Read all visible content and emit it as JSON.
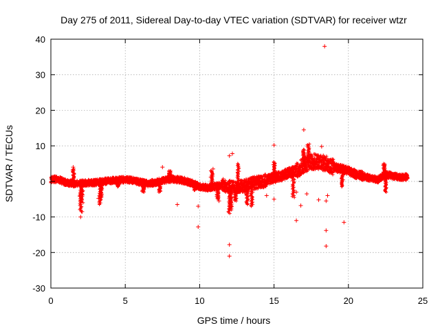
{
  "chart_data": {
    "type": "scatter",
    "title": "Day 275 of 2011, Sidereal Day-to-day VTEC variation (SDTVAR) for receiver wtzr",
    "xlabel": "GPS time / hours",
    "ylabel": "SDTVAR / TECUs",
    "xlim": [
      0,
      25
    ],
    "ylim": [
      -30,
      40
    ],
    "xticks": [
      0,
      5,
      10,
      15,
      20,
      25
    ],
    "yticks": [
      -30,
      -20,
      -10,
      0,
      10,
      20,
      30,
      40
    ],
    "grid": true,
    "marker": "+",
    "color": "#ff0000",
    "baseline_trend": [
      [
        0.0,
        0.5
      ],
      [
        0.3,
        0.6
      ],
      [
        0.6,
        0.4
      ],
      [
        1.0,
        -0.3
      ],
      [
        1.5,
        -0.6
      ],
      [
        2.0,
        -0.5
      ],
      [
        2.5,
        -0.4
      ],
      [
        3.0,
        -0.3
      ],
      [
        3.5,
        -0.1
      ],
      [
        4.0,
        0.2
      ],
      [
        4.5,
        0.4
      ],
      [
        5.0,
        0.5
      ],
      [
        5.5,
        0.3
      ],
      [
        6.0,
        -0.2
      ],
      [
        6.5,
        -0.6
      ],
      [
        7.0,
        -0.3
      ],
      [
        7.5,
        0.2
      ],
      [
        8.0,
        0.6
      ],
      [
        8.5,
        0.5
      ],
      [
        9.0,
        0.2
      ],
      [
        9.5,
        -0.5
      ],
      [
        10.0,
        -1.5
      ],
      [
        10.5,
        -1.8
      ],
      [
        11.0,
        -1.5
      ],
      [
        11.5,
        -1.0
      ],
      [
        12.0,
        -1.5
      ],
      [
        12.5,
        -1.8
      ],
      [
        13.0,
        -1.2
      ],
      [
        13.5,
        -0.5
      ],
      [
        14.0,
        -0.3
      ],
      [
        14.5,
        0.3
      ],
      [
        15.0,
        1.0
      ],
      [
        15.5,
        1.5
      ],
      [
        16.0,
        2.5
      ],
      [
        16.5,
        3.0
      ],
      [
        17.0,
        4.5
      ],
      [
        17.5,
        5.5
      ],
      [
        18.0,
        5.5
      ],
      [
        18.5,
        5.0
      ],
      [
        19.0,
        4.0
      ],
      [
        19.5,
        3.5
      ],
      [
        20.0,
        3.0
      ],
      [
        20.5,
        2.0
      ],
      [
        21.0,
        1.5
      ],
      [
        21.5,
        0.8
      ],
      [
        22.0,
        0.5
      ],
      [
        22.5,
        2.0
      ],
      [
        23.0,
        1.5
      ],
      [
        23.5,
        1.2
      ],
      [
        24.0,
        1.2
      ]
    ],
    "outliers": [
      [
        18.4,
        38.0
      ],
      [
        17.0,
        14.5
      ],
      [
        15.0,
        10.2
      ],
      [
        18.2,
        9.8
      ],
      [
        12.2,
        7.8
      ],
      [
        12.0,
        7.2
      ],
      [
        7.5,
        4.0
      ],
      [
        1.5,
        4.0
      ],
      [
        8.5,
        -6.5
      ],
      [
        9.9,
        -7.0
      ],
      [
        9.9,
        -12.8
      ],
      [
        12.0,
        -17.8
      ],
      [
        12.0,
        -21.0
      ],
      [
        16.5,
        -11.0
      ],
      [
        18.5,
        -13.8
      ],
      [
        18.5,
        -18.2
      ],
      [
        19.7,
        -11.5
      ],
      [
        16.8,
        -6.8
      ],
      [
        17.2,
        -3.5
      ],
      [
        18.0,
        -5.2
      ],
      [
        18.5,
        -5.5
      ],
      [
        18.6,
        -4.0
      ],
      [
        2.0,
        -10.0
      ],
      [
        2.1,
        -8.5
      ],
      [
        3.2,
        -4.8
      ],
      [
        11.3,
        -5.5
      ],
      [
        10.9,
        3.5
      ],
      [
        15.0,
        -5.0
      ],
      [
        14.5,
        -4.0
      ],
      [
        14.0,
        1.0
      ],
      [
        16.2,
        1.0
      ],
      [
        16.5,
        -3.0
      ]
    ]
  }
}
